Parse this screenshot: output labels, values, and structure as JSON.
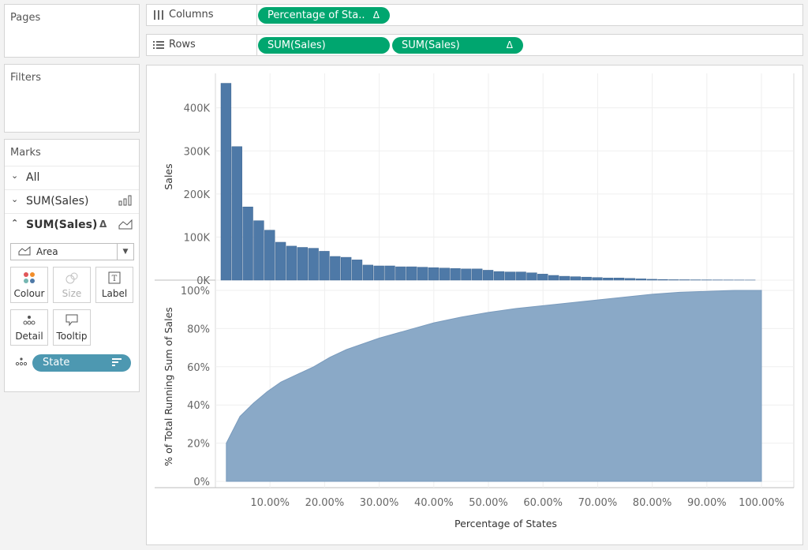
{
  "pages": {
    "title": "Pages"
  },
  "filters": {
    "title": "Filters"
  },
  "shelves": {
    "columns": {
      "icon": "columns-icon",
      "label": "Columns",
      "pills": [
        {
          "label": "Percentage of Sta..",
          "delta": "Δ"
        }
      ]
    },
    "rows": {
      "icon": "rows-icon",
      "label": "Rows",
      "pills": [
        {
          "label": "SUM(Sales)"
        },
        {
          "label": "SUM(Sales)",
          "delta": "Δ"
        }
      ]
    }
  },
  "marks": {
    "title": "Marks",
    "all_label": "All",
    "layer1": {
      "label": "SUM(Sales)",
      "type_icon": "bar-chart-icon"
    },
    "layer2": {
      "label": "SUM(Sales)",
      "delta": "Δ",
      "type_icon": "area-chart-icon"
    },
    "mark_type": "Area",
    "buttons": {
      "colour": "Colour",
      "size": "Size",
      "label": "Label",
      "detail": "Detail",
      "tooltip": "Tooltip"
    },
    "field_pill": "State"
  },
  "chart_data": {
    "type": "bar",
    "panes": [
      {
        "type": "bar",
        "ylabel": "Sales",
        "yticks": [
          "0K",
          "100K",
          "200K",
          "300K",
          "400K"
        ],
        "ylim": [
          0,
          480000
        ],
        "color": "#4e79a7",
        "values": [
          457000,
          310000,
          170000,
          138000,
          116000,
          88000,
          79000,
          76000,
          74000,
          67000,
          55000,
          53000,
          47000,
          35000,
          33000,
          33000,
          31000,
          31000,
          30000,
          29000,
          28000,
          27000,
          26000,
          26000,
          23000,
          20000,
          19000,
          19000,
          17000,
          14000,
          11000,
          9000,
          8000,
          7000,
          6000,
          5000,
          5000,
          4000,
          3000,
          2000,
          1500,
          1000,
          900,
          700,
          600,
          500,
          400,
          300,
          200
        ]
      },
      {
        "type": "area",
        "ylabel": "% of Total Running Sum of Sales",
        "yticks": [
          "0%",
          "20%",
          "40%",
          "60%",
          "80%",
          "100%"
        ],
        "ylim": [
          0,
          100
        ],
        "color": "#8aa9c7",
        "x": [
          2,
          4.5,
          7,
          9.5,
          12,
          15,
          18,
          21,
          24,
          27,
          30,
          35,
          40,
          45,
          50,
          55,
          60,
          65,
          70,
          75,
          80,
          85,
          90,
          95,
          100
        ],
        "y": [
          20,
          34,
          41,
          47,
          52,
          56,
          60,
          65,
          69,
          72,
          75,
          79,
          83,
          86,
          88.5,
          90.5,
          92,
          93.5,
          95,
          96.5,
          98,
          99,
          99.5,
          100,
          100
        ]
      }
    ],
    "x_ticks": [
      "10.00%",
      "20.00%",
      "30.00%",
      "40.00%",
      "50.00%",
      "60.00%",
      "70.00%",
      "80.00%",
      "90.00%",
      "100.00%"
    ],
    "xlabel": "Percentage of States",
    "grid": true
  }
}
